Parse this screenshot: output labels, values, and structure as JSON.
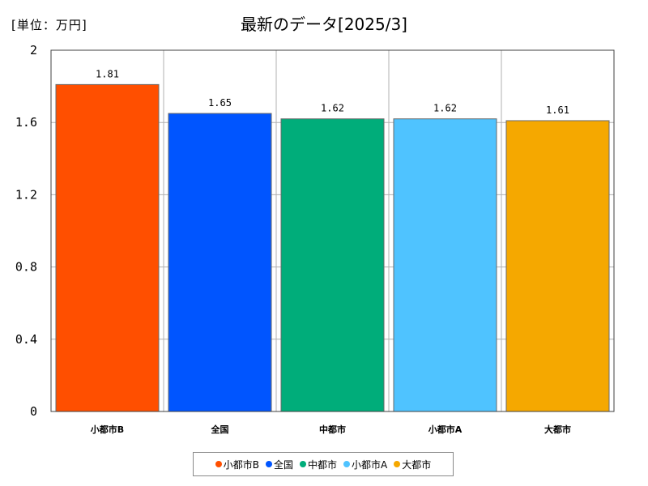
{
  "unit_label": "[単位：万円]",
  "chart_data": {
    "type": "bar",
    "title": "最新のデータ[2025/3]",
    "categories": [
      "小都市B",
      "全国",
      "中都市",
      "小都市A",
      "大都市"
    ],
    "values": [
      1.81,
      1.65,
      1.62,
      1.62,
      1.61
    ],
    "value_labels": [
      "1.81",
      "1.65",
      "1.62",
      "1.62",
      "1.61"
    ],
    "colors": [
      "#ff4f00",
      "#0055ff",
      "#00ad7a",
      "#4fc3ff",
      "#f5a800"
    ],
    "ylim": [
      0,
      2
    ],
    "yticks": [
      0,
      0.4,
      0.8,
      1.2,
      1.6,
      2
    ],
    "ytick_labels": [
      "0",
      "0.4",
      "0.8",
      "1.2",
      "1.6",
      "2"
    ],
    "grid": true,
    "legend_position": "bottom"
  }
}
